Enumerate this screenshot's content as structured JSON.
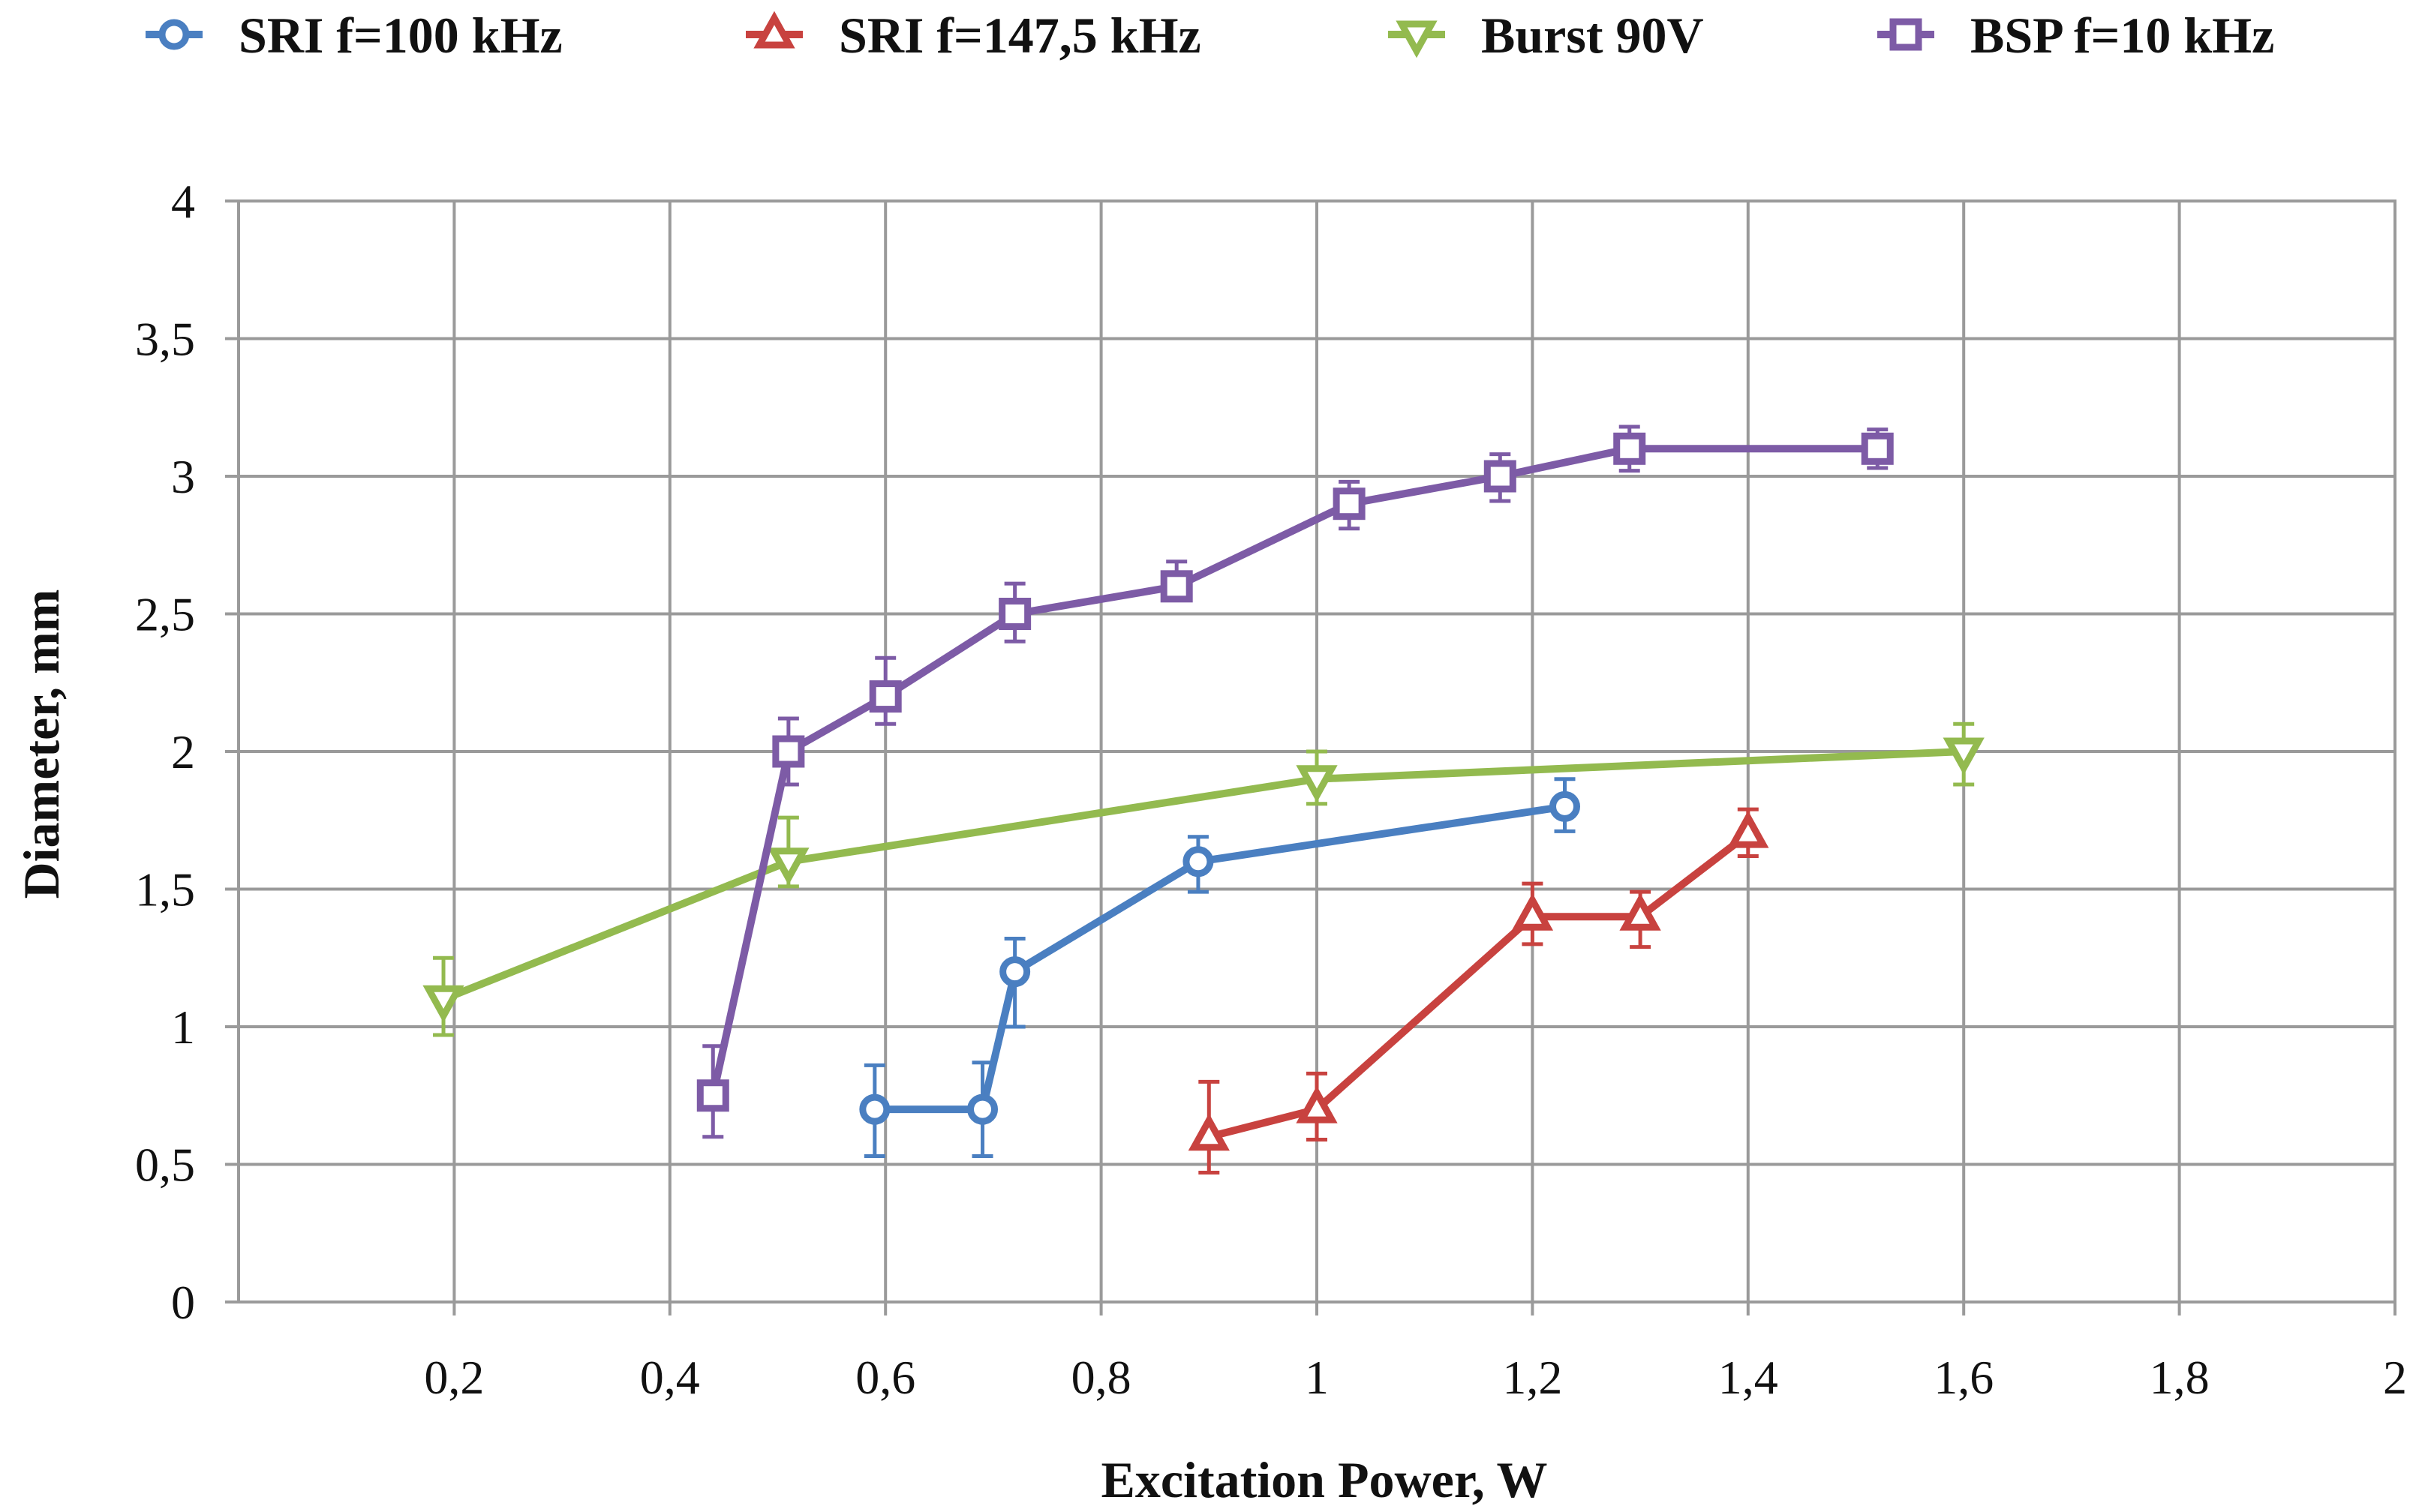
{
  "chart_data": {
    "type": "line",
    "title": "",
    "xlabel": "Excitation Power, W",
    "ylabel": "Diameter, mm",
    "xlim": [
      0,
      2
    ],
    "ylim": [
      0,
      4
    ],
    "x_ticks": [
      0.2,
      0.4,
      0.6,
      0.8,
      1.0,
      1.2,
      1.4,
      1.6,
      1.8,
      2.0
    ],
    "x_tick_labels": [
      "0,2",
      "0,4",
      "0,6",
      "0,8",
      "1",
      "1,2",
      "1,4",
      "1,6",
      "1,8",
      "2"
    ],
    "y_ticks": [
      0,
      0.5,
      1.0,
      1.5,
      2.0,
      2.5,
      3.0,
      3.5,
      4.0
    ],
    "y_tick_labels": [
      "0",
      "0,5",
      "1",
      "1,5",
      "2",
      "2,5",
      "3",
      "3,5",
      "4"
    ],
    "grid": true,
    "legend_position": "top",
    "series": [
      {
        "name": "SRI f=100 kHz",
        "color": "#4a7fc1",
        "marker": "circle",
        "x": [
          0.59,
          0.69,
          0.72,
          0.89,
          1.23
        ],
        "y": [
          0.7,
          0.7,
          1.2,
          1.6,
          1.8
        ],
        "err_up": [
          0.16,
          0.17,
          0.12,
          0.09,
          0.1
        ],
        "err_down": [
          0.17,
          0.17,
          0.2,
          0.11,
          0.09
        ]
      },
      {
        "name": "SRI f=147,5 kHz",
        "color": "#c8423f",
        "marker": "triangle-up",
        "x": [
          0.9,
          1.0,
          1.2,
          1.3,
          1.4
        ],
        "y": [
          0.6,
          0.7,
          1.4,
          1.4,
          1.7
        ],
        "err_up": [
          0.2,
          0.13,
          0.12,
          0.09,
          0.09
        ],
        "err_down": [
          0.13,
          0.11,
          0.1,
          0.11,
          0.08
        ]
      },
      {
        "name": "Burst 90V",
        "color": "#93ba4f",
        "marker": "triangle-down",
        "x": [
          0.19,
          0.51,
          1.0,
          1.6
        ],
        "y": [
          1.1,
          1.6,
          1.9,
          2.0
        ],
        "err_up": [
          0.15,
          0.16,
          0.1,
          0.1
        ],
        "err_down": [
          0.13,
          0.09,
          0.09,
          0.12
        ]
      },
      {
        "name": "BSP f=10 kHz",
        "color": "#7d5ba6",
        "marker": "square",
        "x": [
          0.44,
          0.51,
          0.6,
          0.72,
          0.87,
          1.03,
          1.17,
          1.29,
          1.52
        ],
        "y": [
          0.75,
          2.0,
          2.2,
          2.5,
          2.6,
          2.9,
          3.0,
          3.1,
          3.1
        ],
        "err_up": [
          0.18,
          0.12,
          0.14,
          0.11,
          0.09,
          0.08,
          0.08,
          0.08,
          0.07
        ],
        "err_down": [
          0.15,
          0.12,
          0.1,
          0.1,
          0.05,
          0.09,
          0.09,
          0.08,
          0.07
        ]
      }
    ]
  }
}
